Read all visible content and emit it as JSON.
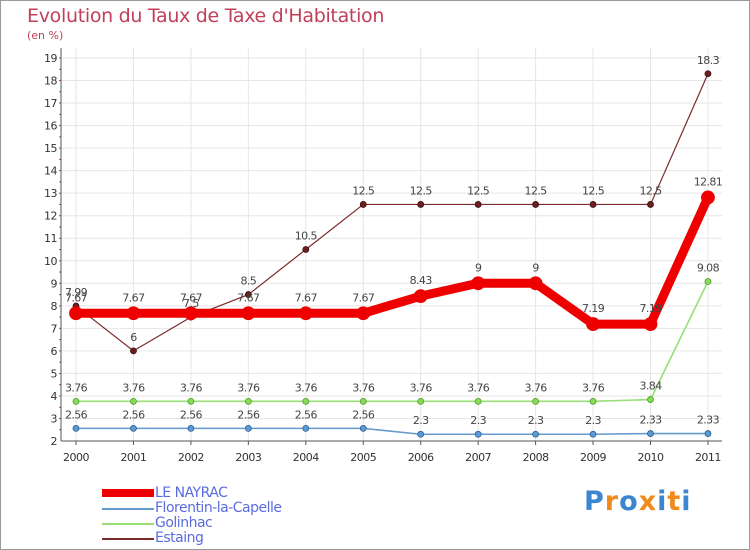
{
  "chart_data": {
    "type": "line",
    "title": "Evolution du Taux de Taxe d'Habitation",
    "subtitle": "(en %)",
    "xlabel": "",
    "ylabel": "",
    "categories": [
      "2000",
      "2001",
      "2002",
      "2003",
      "2004",
      "2005",
      "2006",
      "2007",
      "2008",
      "2009",
      "2010",
      "2011"
    ],
    "ylim": [
      2,
      19
    ],
    "yticks": [
      "2",
      "3",
      "4",
      "5",
      "6",
      "7",
      "8",
      "9",
      "10",
      "11",
      "12",
      "13",
      "14",
      "15",
      "16",
      "17",
      "18",
      "19"
    ],
    "grid": true,
    "legend_position": "bottom-left",
    "series": [
      {
        "name": "Estaing",
        "color": "#7a2a2a",
        "values": [
          7.99,
          6,
          7.5,
          8.5,
          10.5,
          12.5,
          12.5,
          12.5,
          12.5,
          12.5,
          12.5,
          18.3
        ],
        "labels": [
          "7.99",
          "6",
          "7.5",
          "8.5",
          "10.5",
          "12.5",
          "12.5",
          "12.5",
          "12.5",
          "12.5",
          "12.5",
          "18.3"
        ]
      },
      {
        "name": "Golinhac",
        "color": "#99dd77",
        "values": [
          3.76,
          3.76,
          3.76,
          3.76,
          3.76,
          3.76,
          3.76,
          3.76,
          3.76,
          3.76,
          3.84,
          9.08
        ],
        "labels": [
          "3.76",
          "3.76",
          "3.76",
          "3.76",
          "3.76",
          "3.76",
          "3.76",
          "3.76",
          "3.76",
          "3.76",
          "3.84",
          "9.08"
        ]
      },
      {
        "name": "Florentin-la-Capelle",
        "color": "#6699cc",
        "values": [
          2.56,
          2.56,
          2.56,
          2.56,
          2.56,
          2.56,
          2.3,
          2.3,
          2.3,
          2.3,
          2.33,
          2.33
        ],
        "labels": [
          "2.56",
          "2.56",
          "2.56",
          "2.56",
          "2.56",
          "2.56",
          "2.3",
          "2.3",
          "2.3",
          "2.3",
          "2.33",
          "2.33"
        ]
      },
      {
        "name": "LE NAYRAC",
        "color": "#ee0000",
        "values": [
          7.67,
          7.67,
          7.67,
          7.67,
          7.67,
          7.67,
          8.43,
          9,
          9,
          7.19,
          7.19,
          12.81
        ],
        "labels": [
          "7.67",
          "7.67",
          "7.67",
          "7.67",
          "7.67",
          "7.67",
          "8.43",
          "9",
          "9",
          "7.19",
          "7.19",
          "12.81"
        ]
      }
    ]
  },
  "legend": {
    "items": [
      {
        "label": "LE NAYRAC",
        "color": "#ee0000"
      },
      {
        "label": "Florentin-la-Capelle",
        "color": "#6699cc"
      },
      {
        "label": "Golinhac",
        "color": "#99dd77"
      },
      {
        "label": "Estaing",
        "color": "#7a2a2a"
      }
    ]
  },
  "brand": {
    "letters": [
      "P",
      "r",
      "o",
      "x",
      "i",
      "t",
      "i"
    ],
    "colors": [
      "#3a86d0",
      "#f08a1c",
      "#3a86d0",
      "#f08a1c",
      "#3a86d0",
      "#f08a1c",
      "#3a86d0"
    ]
  }
}
